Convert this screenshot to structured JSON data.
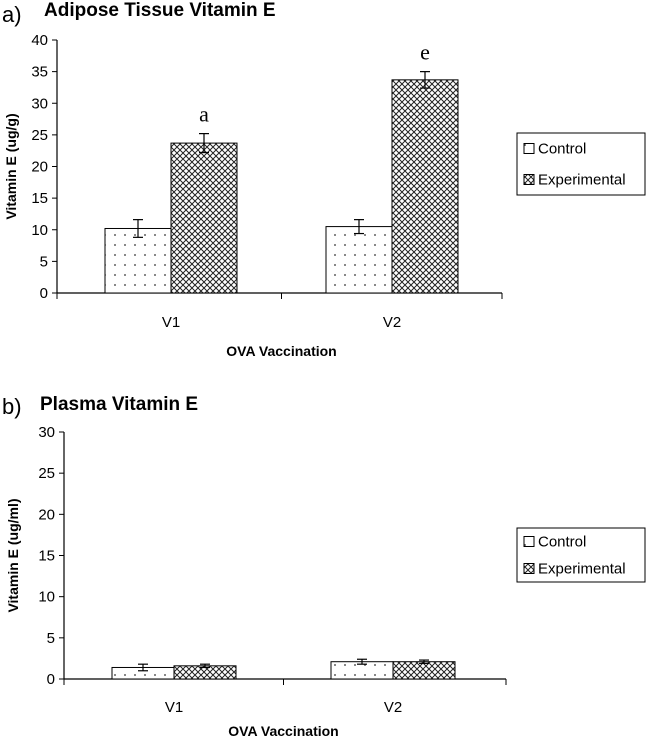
{
  "chart_data": [
    {
      "type": "bar",
      "panel": "a)",
      "title": "Adipose Tissue Vitamin E",
      "xlabel": "OVA Vaccination",
      "ylabel": "Vitamin E (ug/g)",
      "ylim": [
        0,
        40
      ],
      "yticks": [
        "0",
        "5",
        "10",
        "15",
        "20",
        "25",
        "30",
        "35",
        "40"
      ],
      "categories": [
        "V1",
        "V2"
      ],
      "series": [
        {
          "name": "Control",
          "values": [
            10.2,
            10.5
          ],
          "errors": [
            1.4,
            1.1
          ]
        },
        {
          "name": "Experimental",
          "values": [
            23.7,
            33.7
          ],
          "errors": [
            1.5,
            1.3
          ]
        }
      ],
      "annotations": [
        {
          "text": "a",
          "category": "V1",
          "series": "Experimental"
        },
        {
          "text": "e",
          "category": "V2",
          "series": "Experimental"
        }
      ],
      "legend_position": "right",
      "grid": false
    },
    {
      "type": "bar",
      "panel": "b)",
      "title": "Plasma Vitamin E",
      "xlabel": "OVA Vaccination",
      "ylabel": "Vitamin E (ug/ml)",
      "ylim": [
        0,
        30
      ],
      "yticks": [
        "0",
        "5",
        "10",
        "15",
        "20",
        "25",
        "30"
      ],
      "categories": [
        "V1",
        "V2"
      ],
      "series": [
        {
          "name": "Control",
          "values": [
            1.4,
            2.1
          ],
          "errors": [
            0.4,
            0.3
          ]
        },
        {
          "name": "Experimental",
          "values": [
            1.6,
            2.1
          ],
          "errors": [
            0.2,
            0.2
          ]
        }
      ],
      "annotations": [],
      "legend_position": "right",
      "grid": false
    }
  ]
}
